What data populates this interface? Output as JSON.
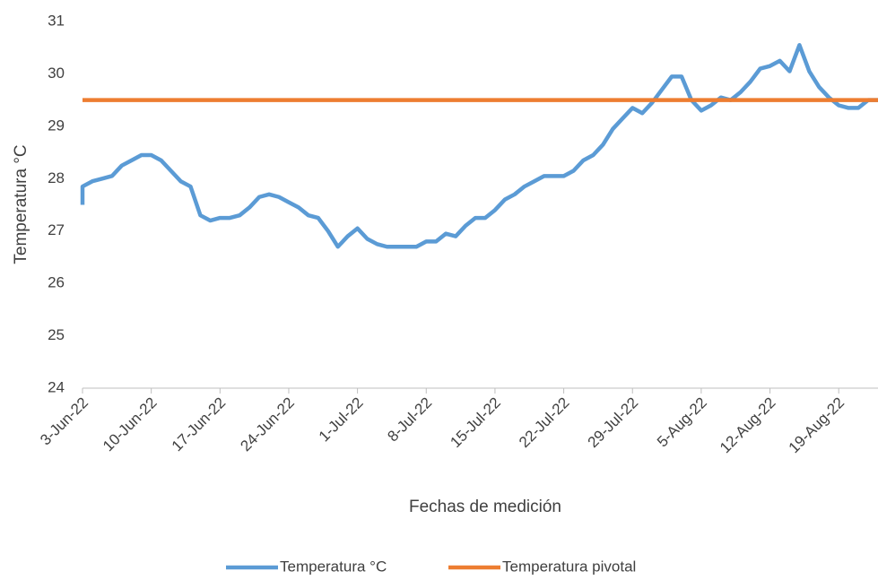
{
  "chart_data": {
    "type": "line",
    "x_label": "Fechas de medición",
    "y_label": "Temperatura °C",
    "x": [
      "2022-06-03",
      "2022-06-03",
      "2022-06-04",
      "2022-06-05",
      "2022-06-06",
      "2022-06-07",
      "2022-06-08",
      "2022-06-09",
      "2022-06-10",
      "2022-06-11",
      "2022-06-12",
      "2022-06-13",
      "2022-06-14",
      "2022-06-15",
      "2022-06-16",
      "2022-06-17",
      "2022-06-18",
      "2022-06-19",
      "2022-06-20",
      "2022-06-21",
      "2022-06-22",
      "2022-06-23",
      "2022-06-24",
      "2022-06-25",
      "2022-06-26",
      "2022-06-27",
      "2022-06-28",
      "2022-06-29",
      "2022-06-30",
      "2022-07-01",
      "2022-07-02",
      "2022-07-03",
      "2022-07-04",
      "2022-07-05",
      "2022-07-06",
      "2022-07-07",
      "2022-07-08",
      "2022-07-09",
      "2022-07-10",
      "2022-07-11",
      "2022-07-12",
      "2022-07-13",
      "2022-07-14",
      "2022-07-15",
      "2022-07-16",
      "2022-07-17",
      "2022-07-18",
      "2022-07-19",
      "2022-07-20",
      "2022-07-21",
      "2022-07-22",
      "2022-07-23",
      "2022-07-24",
      "2022-07-25",
      "2022-07-26",
      "2022-07-27",
      "2022-07-28",
      "2022-07-29",
      "2022-07-30",
      "2022-07-31",
      "2022-08-01",
      "2022-08-02",
      "2022-08-03",
      "2022-08-04",
      "2022-08-05",
      "2022-08-06",
      "2022-08-07",
      "2022-08-08",
      "2022-08-09",
      "2022-08-10",
      "2022-08-11",
      "2022-08-12",
      "2022-08-13",
      "2022-08-14",
      "2022-08-15",
      "2022-08-16",
      "2022-08-17",
      "2022-08-18",
      "2022-08-19",
      "2022-08-20",
      "2022-08-21",
      "2022-08-22",
      "2022-08-23"
    ],
    "series": [
      {
        "name": "Temperatura °C",
        "color": "#5b9bd5",
        "values": [
          27.5,
          27.85,
          27.95,
          28.0,
          28.05,
          28.25,
          28.35,
          28.45,
          28.45,
          28.35,
          28.15,
          27.95,
          27.85,
          27.3,
          27.2,
          27.25,
          27.25,
          27.3,
          27.45,
          27.65,
          27.7,
          27.65,
          27.55,
          27.45,
          27.3,
          27.25,
          27.0,
          26.7,
          26.9,
          27.05,
          26.85,
          26.75,
          26.7,
          26.7,
          26.7,
          26.7,
          26.8,
          26.8,
          26.95,
          26.9,
          27.1,
          27.25,
          27.25,
          27.4,
          27.6,
          27.7,
          27.85,
          27.95,
          28.05,
          28.05,
          28.05,
          28.15,
          28.35,
          28.45,
          28.65,
          28.95,
          29.15,
          29.35,
          29.25,
          29.45,
          29.7,
          29.95,
          29.95,
          29.5,
          29.3,
          29.4,
          29.55,
          29.5,
          29.65,
          29.85,
          30.1,
          30.15,
          30.25,
          30.05,
          30.55,
          30.05,
          29.75,
          29.55,
          29.4,
          29.35,
          29.35,
          29.5,
          29.5
        ]
      },
      {
        "name": "Temperatura pivotal",
        "color": "#ed7d31",
        "values": [
          29.5,
          29.5,
          29.5,
          29.5,
          29.5,
          29.5,
          29.5,
          29.5,
          29.5,
          29.5,
          29.5,
          29.5,
          29.5,
          29.5,
          29.5,
          29.5,
          29.5,
          29.5,
          29.5,
          29.5,
          29.5,
          29.5,
          29.5,
          29.5,
          29.5,
          29.5,
          29.5,
          29.5,
          29.5,
          29.5,
          29.5,
          29.5,
          29.5,
          29.5,
          29.5,
          29.5,
          29.5,
          29.5,
          29.5,
          29.5,
          29.5,
          29.5,
          29.5,
          29.5,
          29.5,
          29.5,
          29.5,
          29.5,
          29.5,
          29.5,
          29.5,
          29.5,
          29.5,
          29.5,
          29.5,
          29.5,
          29.5,
          29.5,
          29.5,
          29.5,
          29.5,
          29.5,
          29.5,
          29.5,
          29.5,
          29.5,
          29.5,
          29.5,
          29.5,
          29.5,
          29.5,
          29.5,
          29.5,
          29.5,
          29.5,
          29.5,
          29.5,
          29.5,
          29.5,
          29.5,
          29.5,
          29.5,
          29.5
        ]
      }
    ],
    "xlim": [
      "2022-06-03",
      "2022-08-23"
    ],
    "xticks": [
      {
        "value": "2022-06-03",
        "label": "3-Jun-22"
      },
      {
        "value": "2022-06-10",
        "label": "10-Jun-22"
      },
      {
        "value": "2022-06-17",
        "label": "17-Jun-22"
      },
      {
        "value": "2022-06-24",
        "label": "24-Jun-22"
      },
      {
        "value": "2022-07-01",
        "label": "1-Jul-22"
      },
      {
        "value": "2022-07-08",
        "label": "8-Jul-22"
      },
      {
        "value": "2022-07-15",
        "label": "15-Jul-22"
      },
      {
        "value": "2022-07-22",
        "label": "22-Jul-22"
      },
      {
        "value": "2022-07-29",
        "label": "29-Jul-22"
      },
      {
        "value": "2022-08-05",
        "label": "5-Aug-22"
      },
      {
        "value": "2022-08-12",
        "label": "12-Aug-22"
      },
      {
        "value": "2022-08-19",
        "label": "19-Aug-22"
      }
    ],
    "ylim": [
      24,
      31
    ],
    "yticks": [
      24,
      25,
      26,
      27,
      28,
      29,
      30,
      31
    ],
    "grid": false,
    "legend": "bottom"
  }
}
